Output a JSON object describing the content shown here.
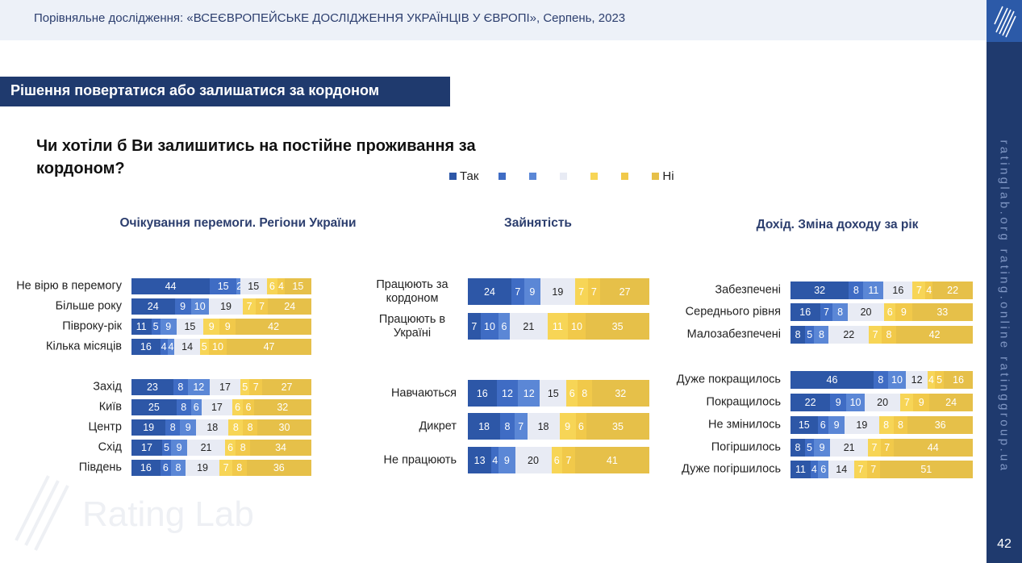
{
  "header": {
    "title": "Порівняльне дослідження: «ВСЕЄВРОПЕЙСЬКЕ ДОСЛІДЖЕННЯ УКРАЇНЦІВ У ЄВРОПІ», Серпень, 2023"
  },
  "sidebar": {
    "text": "ratinglab.org    rating.online    ratinggroup.ua",
    "page_number": "42"
  },
  "section_title": "Рішення повертатися або залишатися за кордоном",
  "question": "Чи хотіли б Ви залишитись на постійне проживання за кордоном?",
  "watermark": "Rating Lab",
  "colors": [
    "#2d57a7",
    "#3f6cc4",
    "#5b87d6",
    "#e8ebf4",
    "#f7d556",
    "#f1c94a",
    "#e6c049"
  ],
  "legend": [
    "Так",
    "",
    "",
    "",
    "",
    "",
    "Ні"
  ],
  "chart_data": [
    {
      "type": "bar",
      "stacked": true,
      "orientation": "horizontal",
      "title": "Очікування перемоги. Регіони України",
      "categories": [
        "Не вірю в перемогу",
        "Більше року",
        "Півроку-рік",
        "Кілька місяців",
        "Захід",
        "Київ",
        "Центр",
        "Схід",
        "Південь"
      ],
      "values": [
        [
          44,
          15,
          2,
          15,
          6,
          4,
          15
        ],
        [
          24,
          9,
          10,
          19,
          7,
          7,
          24
        ],
        [
          11,
          5,
          9,
          15,
          9,
          9,
          42
        ],
        [
          16,
          4,
          4,
          14,
          5,
          10,
          47
        ],
        [
          23,
          8,
          12,
          17,
          5,
          7,
          27
        ],
        [
          25,
          8,
          6,
          17,
          6,
          6,
          32
        ],
        [
          19,
          8,
          9,
          18,
          8,
          8,
          30
        ],
        [
          17,
          5,
          9,
          21,
          6,
          8,
          34
        ],
        [
          16,
          6,
          8,
          19,
          7,
          8,
          36
        ]
      ]
    },
    {
      "type": "bar",
      "stacked": true,
      "orientation": "horizontal",
      "title": "Зайнятість",
      "categories": [
        "Працюють за кордоном",
        "Працюють в Україні",
        "Навчаються",
        "Дикрет",
        "Не працюють"
      ],
      "values": [
        [
          24,
          7,
          9,
          19,
          7,
          7,
          27
        ],
        [
          7,
          10,
          6,
          21,
          11,
          10,
          35
        ],
        [
          16,
          12,
          12,
          15,
          6,
          8,
          32
        ],
        [
          18,
          8,
          7,
          18,
          9,
          6,
          35
        ],
        [
          13,
          4,
          9,
          20,
          6,
          7,
          41
        ]
      ]
    },
    {
      "type": "bar",
      "stacked": true,
      "orientation": "horizontal",
      "title": "Дохід. Зміна доходу за рік",
      "categories": [
        "Забезпечені",
        "Середнього рівня",
        "Малозабезпечені",
        "Дуже покращилось",
        "Покращилось",
        "Не змінилось",
        "Погіршилось",
        "Дуже погіршилось"
      ],
      "values": [
        [
          32,
          8,
          11,
          16,
          7,
          4,
          22
        ],
        [
          16,
          7,
          8,
          20,
          6,
          9,
          33
        ],
        [
          8,
          5,
          8,
          22,
          7,
          8,
          42
        ],
        [
          46,
          8,
          10,
          12,
          4,
          5,
          16
        ],
        [
          22,
          9,
          10,
          20,
          7,
          9,
          24
        ],
        [
          15,
          6,
          9,
          19,
          8,
          8,
          36
        ],
        [
          8,
          5,
          9,
          21,
          7,
          7,
          44
        ],
        [
          11,
          4,
          6,
          14,
          7,
          7,
          51
        ]
      ]
    }
  ]
}
